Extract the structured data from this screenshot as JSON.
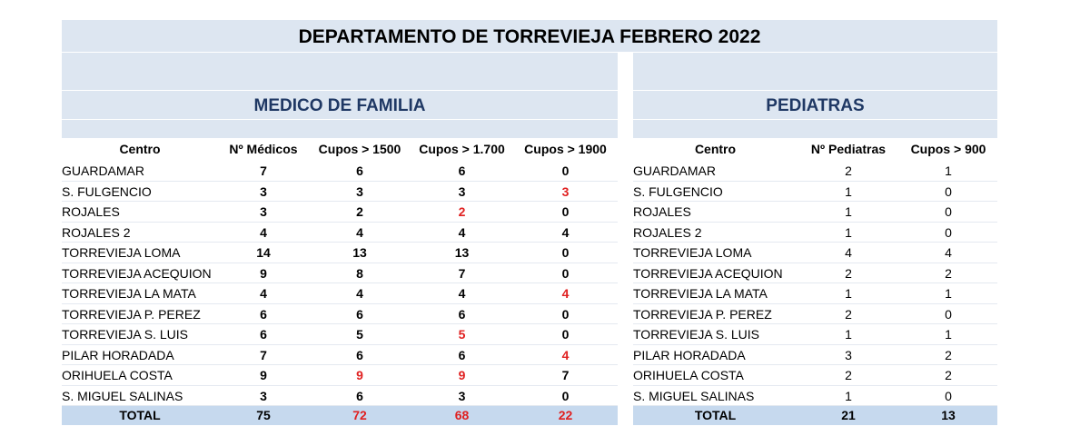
{
  "title": "DEPARTAMENTO DE TORREVIEJA FEBRERO 2022",
  "highlight_color": "#e02020",
  "tables": [
    {
      "title": "MEDICO DE FAMILIA",
      "columns": [
        "Centro",
        "Nº Médicos",
        "Cupos > 1500",
        "Cupos > 1.700",
        "Cupos > 1900"
      ],
      "rows": [
        [
          "GUARDAMAR",
          7,
          6,
          6,
          0
        ],
        [
          "S. FULGENCIO",
          3,
          3,
          3,
          3
        ],
        [
          "ROJALES",
          3,
          2,
          2,
          0
        ],
        [
          "ROJALES 2",
          4,
          4,
          4,
          4
        ],
        [
          "TORREVIEJA LOMA",
          14,
          13,
          13,
          0
        ],
        [
          "TORREVIEJA ACEQUION",
          9,
          8,
          7,
          0
        ],
        [
          "TORREVIEJA LA MATA",
          4,
          4,
          4,
          4
        ],
        [
          "TORREVIEJA P. PEREZ",
          6,
          6,
          6,
          0
        ],
        [
          "TORREVIEJA S. LUIS",
          6,
          5,
          5,
          0
        ],
        [
          "PILAR HORADADA",
          7,
          6,
          6,
          4
        ],
        [
          "ORIHUELA COSTA",
          9,
          9,
          9,
          7
        ],
        [
          "S. MIGUEL SALINAS",
          3,
          6,
          3,
          0
        ]
      ],
      "total": [
        "TOTAL",
        75,
        72,
        68,
        22
      ],
      "highlight": [
        [
          1,
          4
        ],
        [
          2,
          3
        ],
        [
          6,
          4
        ],
        [
          8,
          3
        ],
        [
          9,
          4
        ],
        [
          10,
          2
        ],
        [
          10,
          3
        ]
      ],
      "total_highlight": [
        2,
        3,
        4
      ]
    },
    {
      "title": "PEDIATRAS",
      "columns": [
        "Centro",
        "Nº Pediatras",
        "Cupos > 900"
      ],
      "rows": [
        [
          "GUARDAMAR",
          2,
          1
        ],
        [
          "S. FULGENCIO",
          1,
          0
        ],
        [
          "ROJALES",
          1,
          0
        ],
        [
          "ROJALES 2",
          1,
          0
        ],
        [
          "TORREVIEJA LOMA",
          4,
          4
        ],
        [
          "TORREVIEJA ACEQUION",
          2,
          2
        ],
        [
          "TORREVIEJA LA MATA",
          1,
          1
        ],
        [
          "TORREVIEJA P. PEREZ",
          2,
          0
        ],
        [
          "TORREVIEJA S. LUIS",
          1,
          1
        ],
        [
          "PILAR HORADADA",
          3,
          2
        ],
        [
          "ORIHUELA COSTA",
          2,
          2
        ],
        [
          "S. MIGUEL SALINAS",
          1,
          0
        ]
      ],
      "total": [
        "TOTAL",
        21,
        13
      ],
      "highlight": [],
      "total_highlight": []
    }
  ]
}
